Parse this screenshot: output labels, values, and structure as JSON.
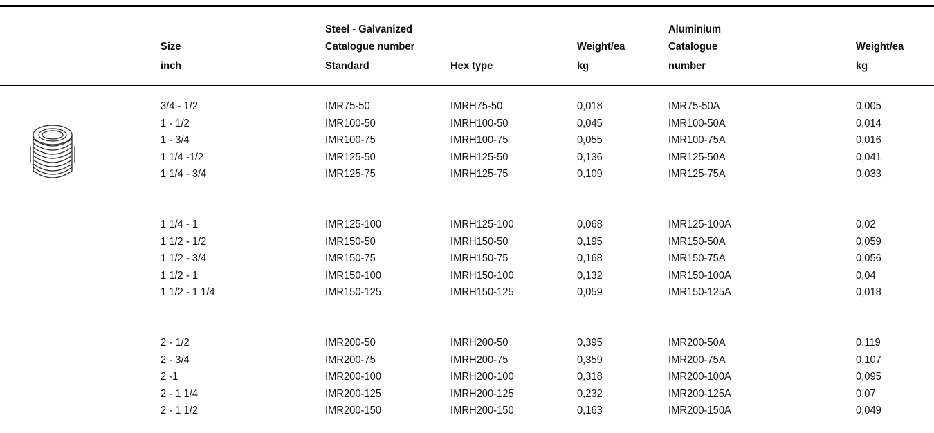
{
  "header": {
    "size": [
      "Size",
      "inch"
    ],
    "steel": "Steel - Galvanized",
    "catalogue": "Catalogue number",
    "standard": "Standard",
    "hex": "Hex type",
    "weight": [
      "Weight/ea",
      "kg"
    ],
    "aluminium": [
      "Aluminium",
      "Catalogue",
      "number"
    ],
    "weight_al": [
      "Weight/ea",
      "kg"
    ]
  },
  "table": {
    "groups": [
      {
        "rows": [
          [
            "3/4 - 1/2",
            "IMR75-50",
            "IMRH75-50",
            "0,018",
            "IMR75-50A",
            "0,005"
          ],
          [
            "1 - 1/2",
            "IMR100-50",
            "IMRH100-50",
            "0,045",
            "IMR100-50A",
            "0,014"
          ],
          [
            "1 - 3/4",
            "IMR100-75",
            "IMRH100-75",
            "0,055",
            "IMR100-75A",
            "0,016"
          ],
          [
            "1 1/4 -1/2",
            "IMR125-50",
            "IMRH125-50",
            "0,136",
            "IMR125-50A",
            "0,041"
          ],
          [
            "1 1/4 - 3/4",
            "IMR125-75",
            "IMRH125-75",
            "0,109",
            "IMR125-75A",
            "0,033"
          ]
        ]
      },
      {
        "rows": [
          [
            "1 1/4 - 1",
            "IMR125-100",
            "IMRH125-100",
            "0,068",
            "IMR125-100A",
            "0,02"
          ],
          [
            "1 1/2 - 1/2",
            "IMR150-50",
            "IMRH150-50",
            "0,195",
            "IMR150-50A",
            "0,059"
          ],
          [
            "1 1/2 - 3/4",
            "IMR150-75",
            "IMRH150-75",
            "0,168",
            "IMR150-75A",
            "0,056"
          ],
          [
            "1 1/2 - 1",
            "IMR150-100",
            "IMRH150-100",
            "0,132",
            "IMR150-100A",
            "0,04"
          ],
          [
            "1 1/2 - 1 1/4",
            "IMR150-125",
            "IMRH150-125",
            "0,059",
            "IMR150-125A",
            "0,018"
          ]
        ]
      },
      {
        "rows": [
          [
            "2 - 1/2",
            "IMR200-50",
            "IMRH200-50",
            "0,395",
            "IMR200-50A",
            "0,119"
          ],
          [
            "2 - 3/4",
            "IMR200-75",
            "IMRH200-75",
            "0,359",
            "IMR200-75A",
            "0,107"
          ],
          [
            "2 -1",
            "IMR200-100",
            "IMRH200-100",
            "0,318",
            "IMR200-100A",
            "0,095"
          ],
          [
            "2 - 1 1/4",
            "IMR200-125",
            "IMRH200-125",
            "0,232",
            "IMR200-125A",
            "0,07"
          ],
          [
            "2 - 1 1/2",
            "IMR200-150",
            "IMRH200-150",
            "0,163",
            "IMR200-150A",
            "0,049"
          ]
        ]
      }
    ]
  }
}
